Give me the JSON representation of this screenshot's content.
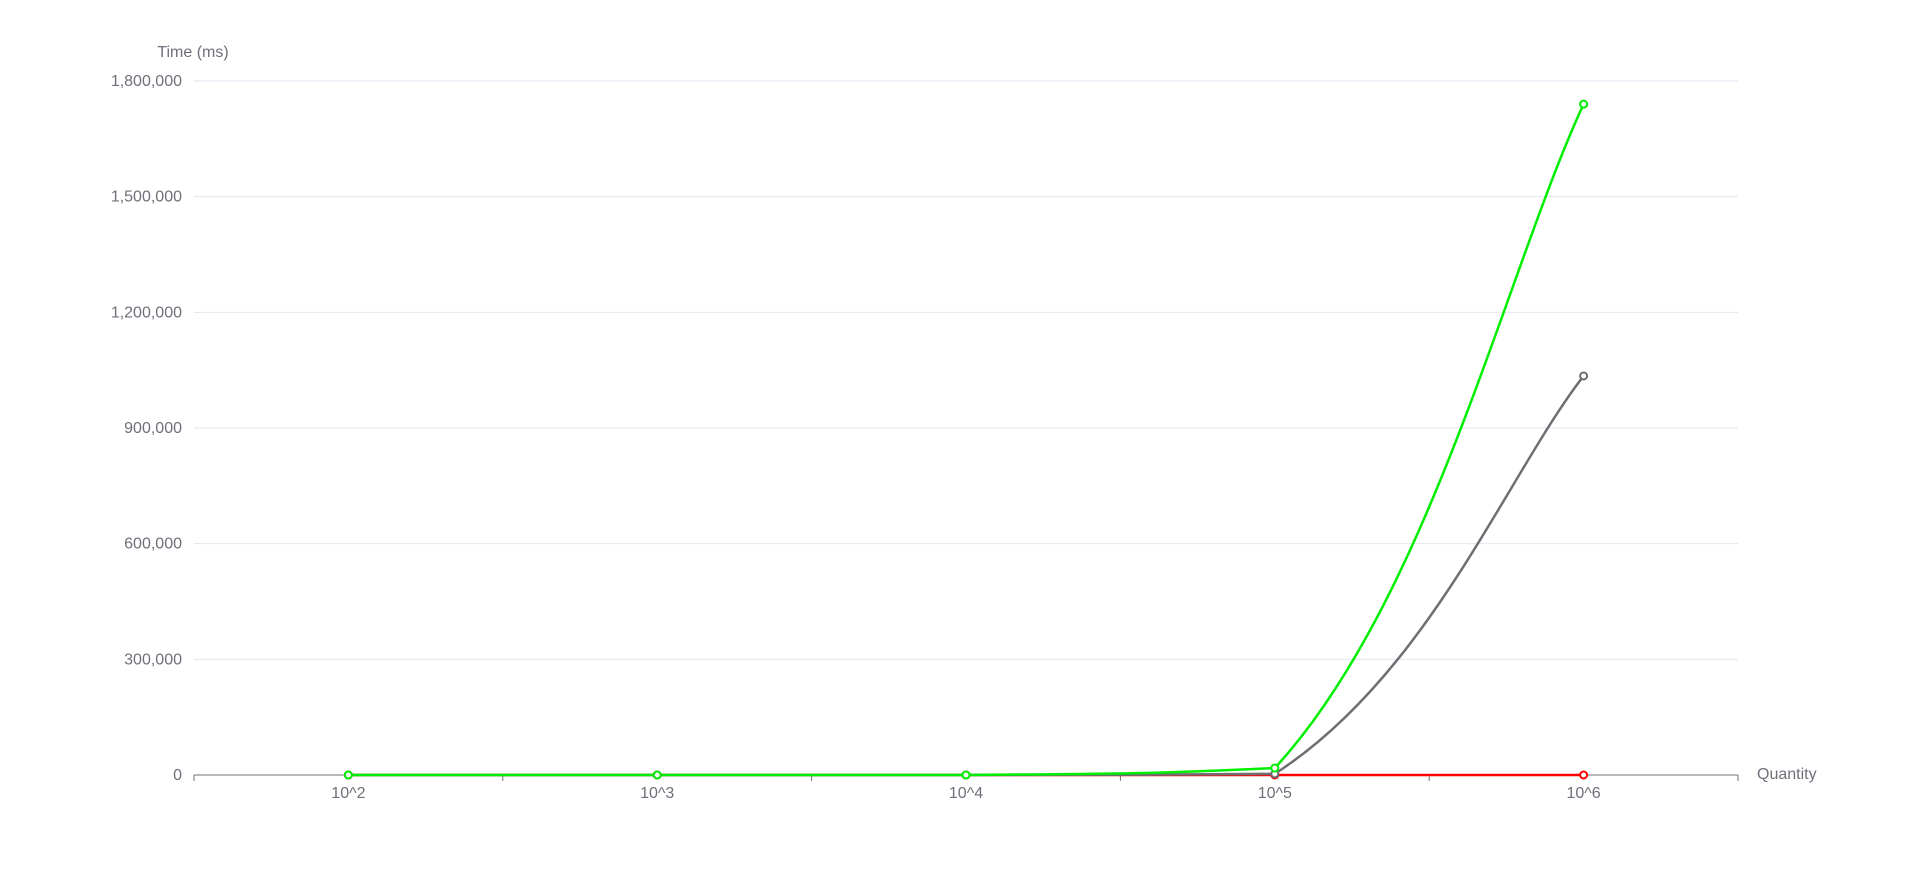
{
  "chart_data": {
    "type": "line",
    "title": "",
    "xlabel": "Quantity",
    "ylabel": "Time (ms)",
    "categories": [
      "10^2",
      "10^3",
      "10^4",
      "10^5",
      "10^6"
    ],
    "ylim": [
      0,
      1800000
    ],
    "yticks": [
      0,
      300000,
      600000,
      900000,
      1200000,
      1500000,
      1800000
    ],
    "ytick_labels": [
      "0",
      "300,000",
      "600,000",
      "900,000",
      "1,200,000",
      "1,500,000",
      "1,800,000"
    ],
    "grid": true,
    "smooth": true,
    "legend": "none",
    "series": [
      {
        "color": "#ff0000",
        "values": [
          0,
          0,
          0,
          0,
          0
        ]
      },
      {
        "color": "#6e6e73",
        "values": [
          0,
          0,
          0,
          3000,
          1035000
        ]
      },
      {
        "color": "#00ee00",
        "values": [
          0,
          0,
          0,
          18000,
          1740000
        ]
      }
    ]
  }
}
